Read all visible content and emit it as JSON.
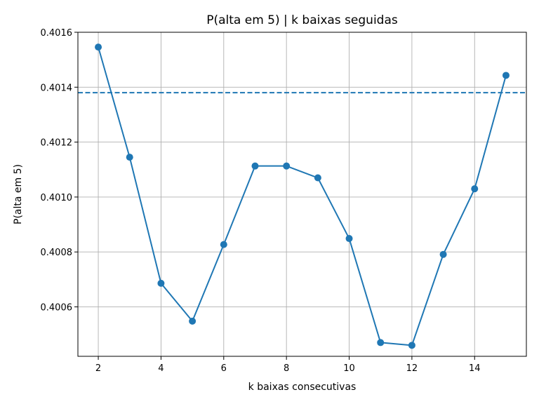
{
  "chart_data": {
    "type": "line",
    "title": "P(alta em 5) | k baixas seguidas",
    "xlabel": "k baixas consecutivas",
    "ylabel": "P(alta em 5)",
    "x": [
      2,
      3,
      4,
      5,
      6,
      7,
      8,
      9,
      10,
      11,
      12,
      13,
      14,
      15
    ],
    "series": [
      {
        "values": [
          0.401546,
          0.401145,
          0.400686,
          0.400548,
          0.400827,
          0.401113,
          0.401113,
          0.40107,
          0.400849,
          0.40047,
          0.40046,
          0.400791,
          0.40103,
          0.401443
        ],
        "color": "#1f77b4",
        "marker": "circle"
      }
    ],
    "reference_line": {
      "y": 0.40138,
      "style": "dashed",
      "color": "#1f77b4"
    },
    "xlim": [
      1.35,
      15.65
    ],
    "ylim": [
      0.40042,
      0.4016
    ],
    "xticks": [
      2,
      4,
      6,
      8,
      10,
      12,
      14
    ],
    "xtick_labels": [
      "2",
      "4",
      "6",
      "8",
      "10",
      "12",
      "14"
    ],
    "yticks": [
      0.4006,
      0.4008,
      0.401,
      0.4012,
      0.4014,
      0.4016
    ],
    "ytick_labels": [
      "0.4006",
      "0.4008",
      "0.4010",
      "0.4012",
      "0.4014",
      "0.4016"
    ],
    "grid": true,
    "legend": "none"
  }
}
